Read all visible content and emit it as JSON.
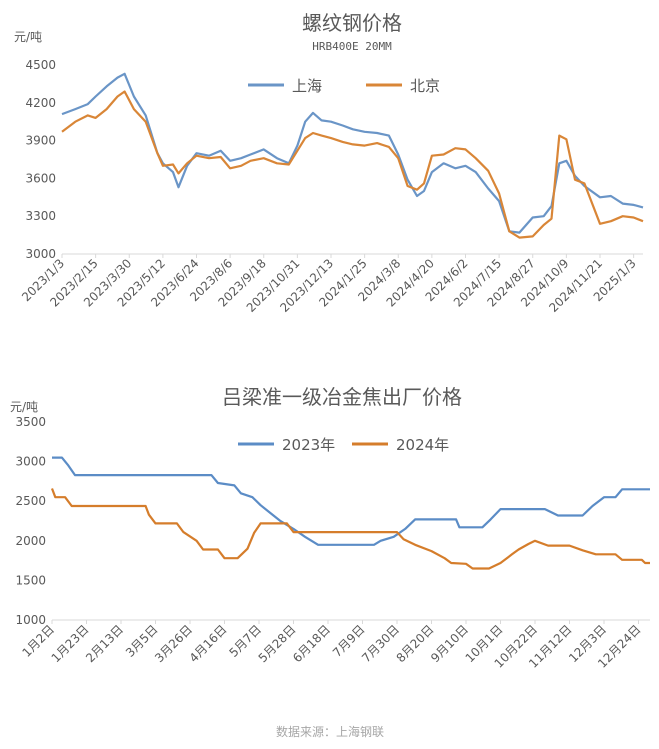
{
  "colors": {
    "blue": "#6a95c7",
    "orange": "#d98637",
    "blue2": "#5b8cc6",
    "orange2": "#d57d2b"
  },
  "source": "数据来源：上海钢联",
  "chart_data": [
    {
      "type": "line",
      "title": "螺纹钢价格",
      "subtitle": "HRB400E 20MM",
      "ylabel": "元/吨",
      "ylim": [
        3000,
        4500
      ],
      "yticks": [
        "3000",
        "3300",
        "3600",
        "3900",
        "4200",
        "4500"
      ],
      "xticks": [
        "2023/1/3",
        "2023/2/15",
        "2023/3/30",
        "2023/5/12",
        "2023/6/24",
        "2023/8/6",
        "2023/9/18",
        "2023/10/31",
        "2023/12/13",
        "2024/1/25",
        "2024/3/8",
        "2024/4/20",
        "2024/6/2",
        "2024/7/15",
        "2024/8/27",
        "2024/10/9",
        "2024/11/21",
        "2025/1/3"
      ],
      "xlim": [
        "2023/1/3",
        "2025/1/15"
      ],
      "grid": false,
      "legend": "top-center",
      "series": [
        {
          "name": "上海",
          "color": "#6a95c7",
          "points": [
            [
              "2023/1/3",
              4110
            ],
            [
              "2023/1/20",
              4150
            ],
            [
              "2023/2/5",
              4190
            ],
            [
              "2023/2/15",
              4250
            ],
            [
              "2023/3/1",
              4330
            ],
            [
              "2023/3/15",
              4400
            ],
            [
              "2023/3/24",
              4430
            ],
            [
              "2023/4/5",
              4250
            ],
            [
              "2023/4/20",
              4100
            ],
            [
              "2023/5/5",
              3800
            ],
            [
              "2023/5/12",
              3720
            ],
            [
              "2023/5/25",
              3650
            ],
            [
              "2023/6/1",
              3530
            ],
            [
              "2023/6/12",
              3700
            ],
            [
              "2023/6/24",
              3800
            ],
            [
              "2023/7/10",
              3780
            ],
            [
              "2023/7/25",
              3820
            ],
            [
              "2023/8/6",
              3740
            ],
            [
              "2023/8/20",
              3760
            ],
            [
              "2023/9/1",
              3790
            ],
            [
              "2023/9/18",
              3830
            ],
            [
              "2023/10/5",
              3760
            ],
            [
              "2023/10/20",
              3720
            ],
            [
              "2023/10/31",
              3860
            ],
            [
              "2023/11/10",
              4050
            ],
            [
              "2023/11/20",
              4120
            ],
            [
              "2023/12/1",
              4060
            ],
            [
              "2023/12/13",
              4050
            ],
            [
              "2023/12/28",
              4020
            ],
            [
              "2024/1/10",
              3990
            ],
            [
              "2024/1/25",
              3970
            ],
            [
              "2024/2/10",
              3960
            ],
            [
              "2024/2/25",
              3940
            ],
            [
              "2024/3/8",
              3790
            ],
            [
              "2024/3/20",
              3590
            ],
            [
              "2024/4/1",
              3460
            ],
            [
              "2024/4/10",
              3500
            ],
            [
              "2024/4/20",
              3650
            ],
            [
              "2024/5/5",
              3720
            ],
            [
              "2024/5/20",
              3680
            ],
            [
              "2024/6/2",
              3700
            ],
            [
              "2024/6/15",
              3650
            ],
            [
              "2024/7/1",
              3520
            ],
            [
              "2024/7/15",
              3420
            ],
            [
              "2024/7/28",
              3180
            ],
            [
              "2024/8/10",
              3170
            ],
            [
              "2024/8/27",
              3290
            ],
            [
              "2024/9/10",
              3300
            ],
            [
              "2024/9/20",
              3380
            ],
            [
              "2024/9/30",
              3720
            ],
            [
              "2024/10/9",
              3740
            ],
            [
              "2024/10/20",
              3620
            ],
            [
              "2024/11/1",
              3540
            ],
            [
              "2024/11/21",
              3450
            ],
            [
              "2024/12/5",
              3460
            ],
            [
              "2024/12/20",
              3400
            ],
            [
              "2025/1/3",
              3390
            ],
            [
              "2025/1/15",
              3370
            ]
          ]
        },
        {
          "name": "北京",
          "color": "#d98637",
          "points": [
            [
              "2023/1/3",
              3970
            ],
            [
              "2023/1/20",
              4050
            ],
            [
              "2023/2/5",
              4100
            ],
            [
              "2023/2/15",
              4080
            ],
            [
              "2023/3/1",
              4150
            ],
            [
              "2023/3/15",
              4250
            ],
            [
              "2023/3/24",
              4290
            ],
            [
              "2023/4/5",
              4150
            ],
            [
              "2023/4/20",
              4050
            ],
            [
              "2023/5/5",
              3800
            ],
            [
              "2023/5/12",
              3700
            ],
            [
              "2023/5/25",
              3710
            ],
            [
              "2023/6/1",
              3640
            ],
            [
              "2023/6/12",
              3720
            ],
            [
              "2023/6/24",
              3780
            ],
            [
              "2023/7/10",
              3760
            ],
            [
              "2023/7/25",
              3770
            ],
            [
              "2023/8/6",
              3680
            ],
            [
              "2023/8/20",
              3700
            ],
            [
              "2023/9/1",
              3740
            ],
            [
              "2023/9/18",
              3760
            ],
            [
              "2023/10/5",
              3720
            ],
            [
              "2023/10/20",
              3710
            ],
            [
              "2023/10/31",
              3820
            ],
            [
              "2023/11/10",
              3920
            ],
            [
              "2023/11/20",
              3960
            ],
            [
              "2023/12/1",
              3940
            ],
            [
              "2023/12/13",
              3920
            ],
            [
              "2023/12/28",
              3890
            ],
            [
              "2024/1/10",
              3870
            ],
            [
              "2024/1/25",
              3860
            ],
            [
              "2024/2/10",
              3880
            ],
            [
              "2024/2/25",
              3850
            ],
            [
              "2024/3/8",
              3760
            ],
            [
              "2024/3/20",
              3540
            ],
            [
              "2024/4/1",
              3510
            ],
            [
              "2024/4/10",
              3560
            ],
            [
              "2024/4/20",
              3780
            ],
            [
              "2024/5/5",
              3790
            ],
            [
              "2024/5/20",
              3840
            ],
            [
              "2024/6/2",
              3830
            ],
            [
              "2024/6/15",
              3760
            ],
            [
              "2024/7/1",
              3660
            ],
            [
              "2024/7/15",
              3480
            ],
            [
              "2024/7/28",
              3180
            ],
            [
              "2024/8/10",
              3130
            ],
            [
              "2024/8/27",
              3140
            ],
            [
              "2024/9/10",
              3230
            ],
            [
              "2024/9/20",
              3280
            ],
            [
              "2024/9/30",
              3940
            ],
            [
              "2024/10/9",
              3910
            ],
            [
              "2024/10/20",
              3590
            ],
            [
              "2024/11/1",
              3560
            ],
            [
              "2024/11/21",
              3240
            ],
            [
              "2024/12/5",
              3260
            ],
            [
              "2024/12/20",
              3300
            ],
            [
              "2025/1/3",
              3290
            ],
            [
              "2025/1/15",
              3260
            ]
          ]
        }
      ]
    },
    {
      "type": "line",
      "title": "吕梁准一级冶金焦出厂价格",
      "ylabel": "元/吨",
      "ylim": [
        1000,
        3500
      ],
      "yticks": [
        "1000",
        "1500",
        "2000",
        "2500",
        "3000",
        "3500"
      ],
      "xticks": [
        "1月2日",
        "1月23日",
        "2月13日",
        "3月5日",
        "3月26日",
        "4月16日",
        "5月7日",
        "5月28日",
        "6月18日",
        "7月9日",
        "7月30日",
        "8月20日",
        "9月10日",
        "10月1日",
        "10月22日",
        "11月12日",
        "12月3日",
        "12月24日"
      ],
      "xlim": [
        "1月2日",
        "12月31日"
      ],
      "grid": false,
      "legend": "top-center",
      "series": [
        {
          "name": "2023年",
          "color": "#5b8cc6",
          "points": [
            [
              "1月2日",
              3050
            ],
            [
              "1月8日",
              3050
            ],
            [
              "1月12日",
              2950
            ],
            [
              "1月16日",
              2830
            ],
            [
              "3月5日",
              2830
            ],
            [
              "4月8日",
              2830
            ],
            [
              "4月12日",
              2730
            ],
            [
              "4月22日",
              2700
            ],
            [
              "4月26日",
              2600
            ],
            [
              "5月3日",
              2550
            ],
            [
              "5月8日",
              2450
            ],
            [
              "5月14日",
              2350
            ],
            [
              "5月20日",
              2250
            ],
            [
              "5月28日",
              2150
            ],
            [
              "6月4日",
              2050
            ],
            [
              "6月12日",
              1950
            ],
            [
              "7月9日",
              1950
            ],
            [
              "7月16日",
              1950
            ],
            [
              "7月20日",
              2000
            ],
            [
              "7月28日",
              2050
            ],
            [
              "8月4日",
              2150
            ],
            [
              "8月10日",
              2270
            ],
            [
              "8月30日",
              2270
            ],
            [
              "9月4日",
              2270
            ],
            [
              "9月6日",
              2170
            ],
            [
              "9月20日",
              2170
            ],
            [
              "9月25日",
              2270
            ],
            [
              "10月1日",
              2400
            ],
            [
              "10月28日",
              2400
            ],
            [
              "11月5日",
              2320
            ],
            [
              "11月20日",
              2320
            ],
            [
              "11月26日",
              2440
            ],
            [
              "12月3日",
              2550
            ],
            [
              "12月10日",
              2550
            ],
            [
              "12月14日",
              2650
            ],
            [
              "12月31日",
              2650
            ]
          ]
        },
        {
          "name": "2024年",
          "color": "#d57d2b",
          "points": [
            [
              "1月2日",
              2660
            ],
            [
              "1月4日",
              2550
            ],
            [
              "1月10日",
              2550
            ],
            [
              "1月14日",
              2440
            ],
            [
              "2月28日",
              2440
            ],
            [
              "3月1日",
              2330
            ],
            [
              "3月5日",
              2220
            ],
            [
              "3月18日",
              2220
            ],
            [
              "3月22日",
              2110
            ],
            [
              "3月30日",
              2000
            ],
            [
              "4月3日",
              1890
            ],
            [
              "4月12日",
              1890
            ],
            [
              "4月16日",
              1780
            ],
            [
              "4月24日",
              1780
            ],
            [
              "4月30日",
              1900
            ],
            [
              "5月4日",
              2100
            ],
            [
              "5月8日",
              2220
            ],
            [
              "5月24日",
              2220
            ],
            [
              "5月28日",
              2110
            ],
            [
              "6月30日",
              2110
            ],
            [
              "7月4日",
              2110
            ],
            [
              "7月30日",
              2110
            ],
            [
              "8月3日",
              2020
            ],
            [
              "8月10日",
              1950
            ],
            [
              "8月20日",
              1870
            ],
            [
              "8月28日",
              1780
            ],
            [
              "9月1日",
              1720
            ],
            [
              "9月10日",
              1710
            ],
            [
              "9月14日",
              1650
            ],
            [
              "9月24日",
              1650
            ],
            [
              "10月1日",
              1720
            ],
            [
              "10月8日",
              1830
            ],
            [
              "10月12日",
              1890
            ],
            [
              "10月18日",
              1960
            ],
            [
              "10月22日",
              2000
            ],
            [
              "10月30日",
              1940
            ],
            [
              "11月12日",
              1940
            ],
            [
              "11月20日",
              1880
            ],
            [
              "11月28日",
              1830
            ],
            [
              "12月10日",
              1830
            ],
            [
              "12月14日",
              1760
            ],
            [
              "12月26日",
              1760
            ],
            [
              "12月28日",
              1720
            ],
            [
              "12月31日",
              1720
            ]
          ]
        }
      ]
    }
  ]
}
